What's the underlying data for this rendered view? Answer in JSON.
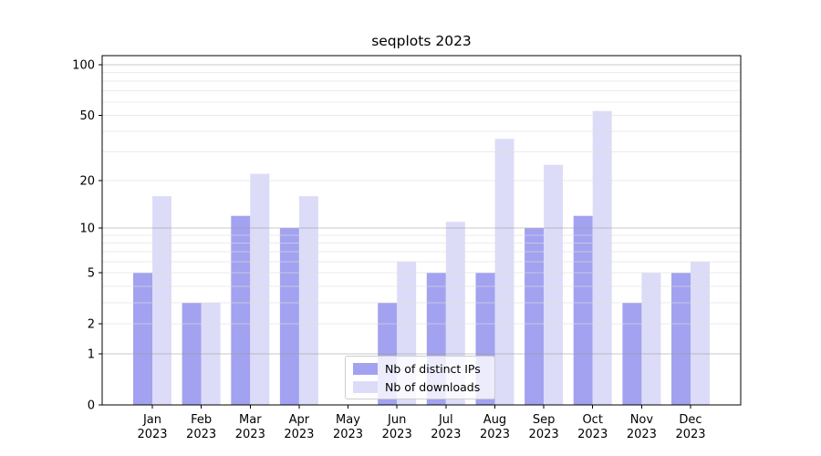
{
  "title": "seqplots 2023",
  "chart_data": {
    "type": "bar",
    "title": "seqplots 2023",
    "xlabel": "",
    "ylabel": "",
    "categories": [
      "Jan",
      "Feb",
      "Mar",
      "Apr",
      "May",
      "Jun",
      "Jul",
      "Aug",
      "Sep",
      "Oct",
      "Nov",
      "Dec"
    ],
    "category_year": "2023",
    "series": [
      {
        "name": "Nb of distinct IPs",
        "color": "#a2a2f0",
        "values": [
          5,
          3,
          12,
          10,
          0,
          3,
          5,
          5,
          10,
          12,
          3,
          5
        ]
      },
      {
        "name": "Nb of downloads",
        "color": "#dcdcf8",
        "values": [
          16,
          3,
          22,
          16,
          0,
          6,
          11,
          36,
          25,
          53,
          5,
          6
        ]
      }
    ],
    "yscale": "log1p",
    "ylim": [
      0,
      113
    ],
    "yticks": [
      0,
      1,
      2,
      5,
      10,
      20,
      50,
      100
    ],
    "ytick_labels": [
      "0",
      "1",
      "2",
      "5",
      "10",
      "20",
      "50",
      "100"
    ],
    "major_gridlines": [
      1,
      10,
      100
    ],
    "minor_gridlines": [
      2,
      3,
      4,
      5,
      6,
      7,
      8,
      9,
      20,
      30,
      40,
      50,
      60,
      70,
      80,
      90
    ],
    "grid": true,
    "legend_position": "lower center",
    "legend_items": [
      "Nb of distinct IPs",
      "Nb of downloads"
    ]
  }
}
